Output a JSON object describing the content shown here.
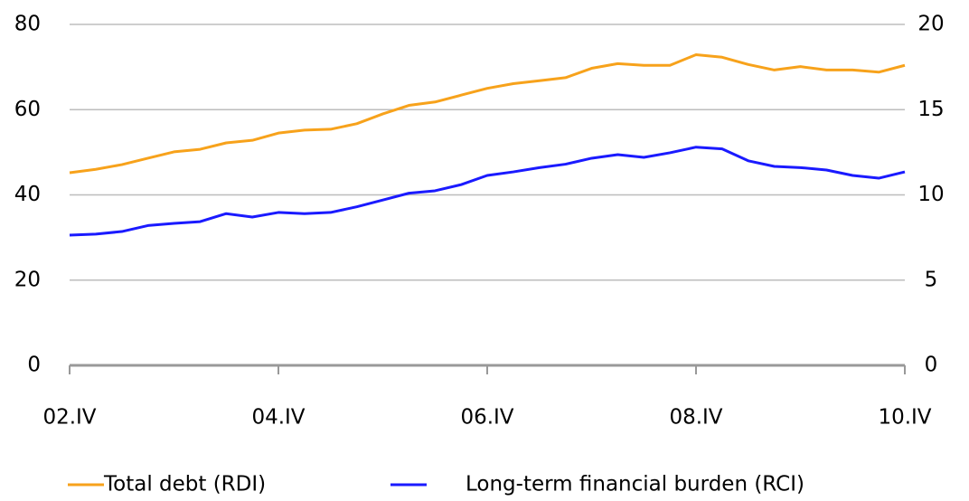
{
  "chart_data": {
    "type": "line",
    "categories": [
      "02.IV",
      null,
      null,
      null,
      null,
      null,
      null,
      null,
      "04.IV",
      null,
      null,
      null,
      null,
      null,
      null,
      null,
      "06.IV",
      null,
      null,
      null,
      null,
      null,
      null,
      null,
      "08.IV",
      null,
      null,
      null,
      null,
      null,
      null,
      null,
      "10.IV"
    ],
    "series": [
      {
        "name": "Total debt (RDI)",
        "color": "#f7a21b",
        "values": [
          45.2,
          46,
          47.1,
          48.6,
          50.1,
          50.7,
          52.2,
          52.8,
          54.5,
          55.2,
          55.4,
          56.7,
          59,
          61,
          61.8,
          63.4,
          65,
          66.1,
          66.8,
          67.5,
          69.7,
          70.8,
          70.4,
          70.4,
          72.9,
          72.3,
          70.6,
          69.3,
          70.1,
          69.3,
          69.3,
          68.8,
          70.4
        ]
      },
      {
        "name": "Long-term financial burden (RCI)",
        "color": "#1a1aff",
        "axis": "y2",
        "values": [
          7.64,
          7.7,
          7.85,
          8.2,
          8.33,
          8.43,
          8.9,
          8.7,
          8.97,
          8.9,
          8.97,
          9.3,
          9.7,
          10.1,
          10.24,
          10.6,
          11.14,
          11.35,
          11.6,
          11.8,
          12.15,
          12.36,
          12.2,
          12.47,
          12.8,
          12.7,
          12,
          11.67,
          11.6,
          11.46,
          11.14,
          10.98,
          11.35
        ]
      }
    ],
    "ylim": [
      0,
      80
    ],
    "yticks": [
      0,
      20,
      40,
      60,
      80
    ],
    "y2lim": [
      0,
      20
    ],
    "y2ticks": [
      0,
      5,
      10,
      15,
      20
    ],
    "grid": true,
    "legend": "bottom"
  }
}
